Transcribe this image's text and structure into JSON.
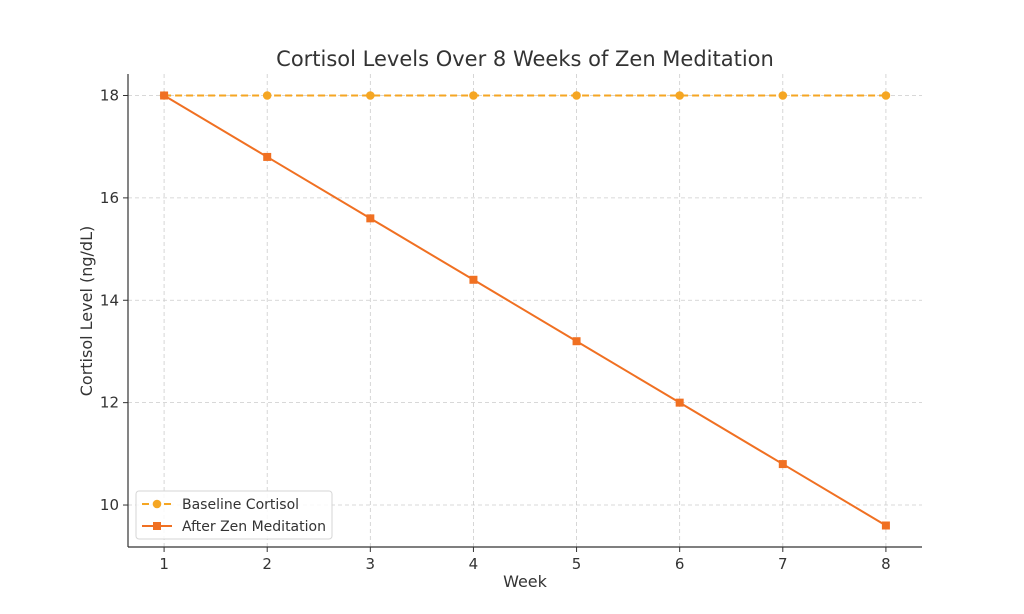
{
  "chart_data": {
    "type": "line",
    "title": "Cortisol Levels Over 8 Weeks of Zen Meditation",
    "xlabel": "Week",
    "ylabel": "Cortisol Level (ng/dL)",
    "x": [
      1,
      2,
      3,
      4,
      5,
      6,
      7,
      8
    ],
    "xticks": [
      "1",
      "2",
      "3",
      "4",
      "5",
      "6",
      "7",
      "8"
    ],
    "yticks": [
      10,
      12,
      14,
      16,
      18
    ],
    "xlim": [
      0.65,
      8.35
    ],
    "ylim": [
      9.18,
      18.42
    ],
    "grid": true,
    "legend_position": "lower-left",
    "series": [
      {
        "name": "Baseline Cortisol",
        "values": [
          18,
          18,
          18,
          18,
          18,
          18,
          18,
          18
        ],
        "color": "#f5a623",
        "line_style": "dashed",
        "marker": "circle"
      },
      {
        "name": "After Zen Meditation",
        "values": [
          18.0,
          16.8,
          15.6,
          14.4,
          13.2,
          12.0,
          10.8,
          9.6
        ],
        "color": "#f07022",
        "line_style": "solid",
        "marker": "square"
      }
    ]
  }
}
